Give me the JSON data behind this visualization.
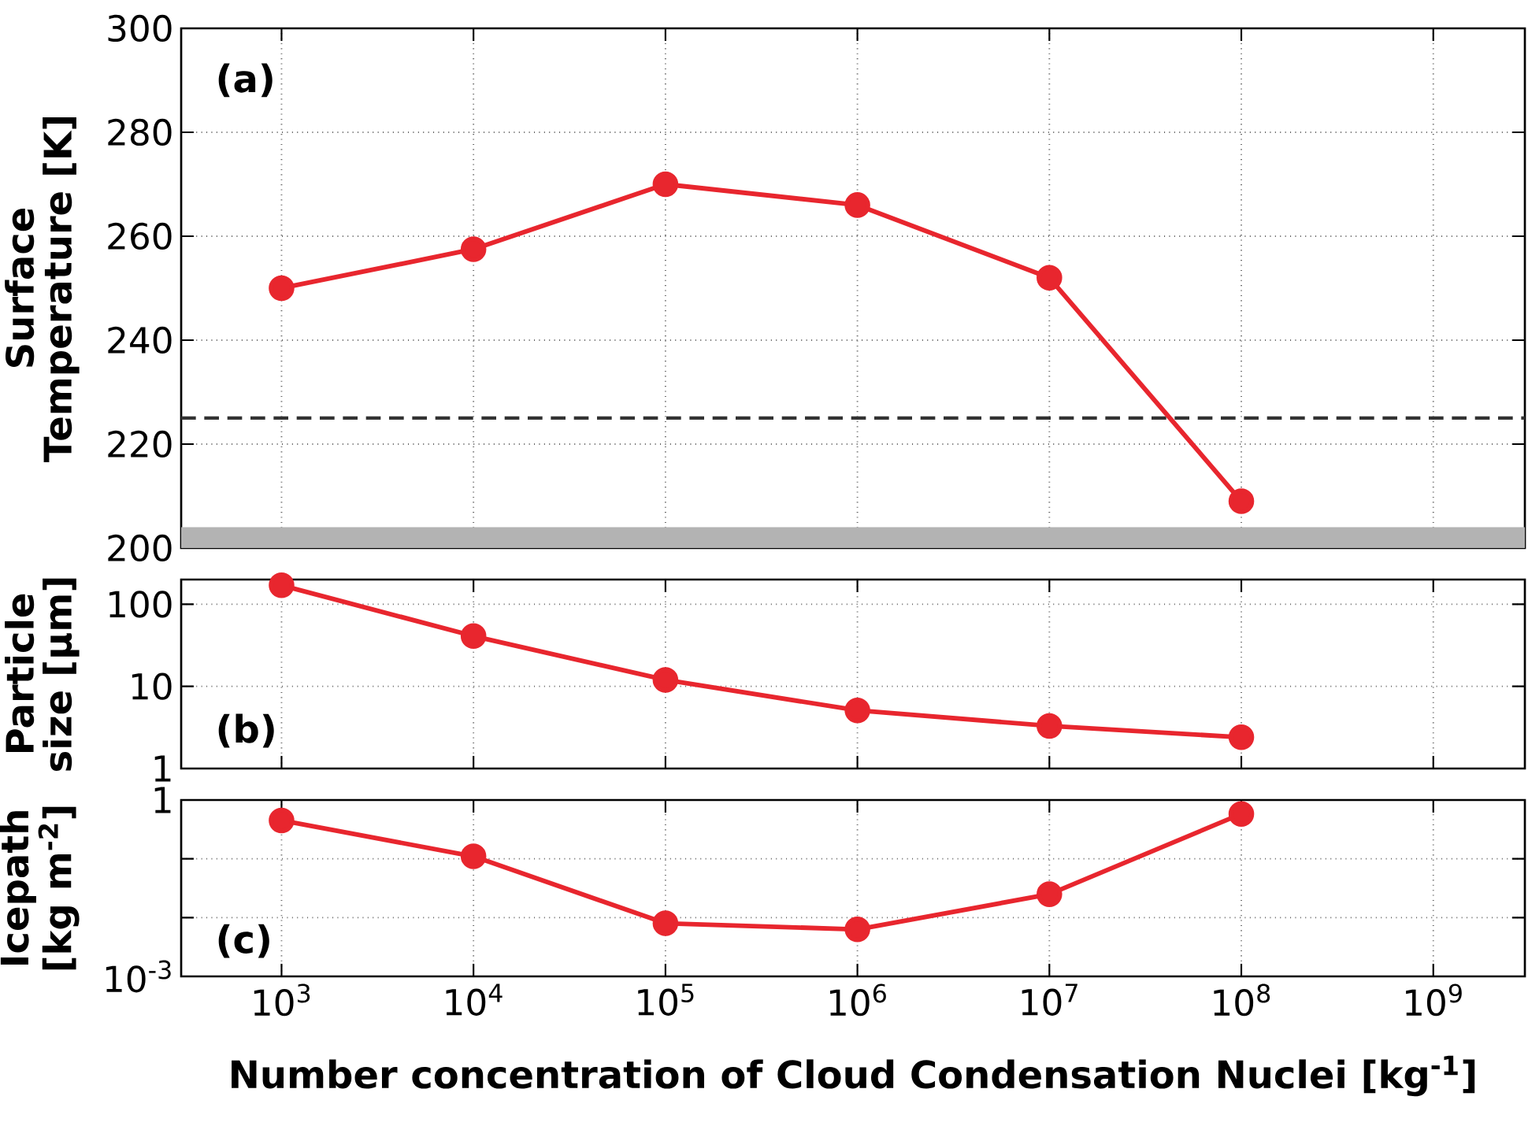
{
  "chart_data": [
    {
      "type": "line",
      "ylabel": "Surface Temperature [K]",
      "annotations": [
        "(a)"
      ],
      "x": [
        1000,
        10000,
        100000,
        1000000,
        10000000,
        100000000
      ],
      "series": [
        {
          "color": "#e8262e",
          "values": [
            250,
            257.5,
            270,
            266,
            252,
            209
          ]
        }
      ],
      "xlim": [
        300,
        3000000000
      ],
      "ylim": [
        200,
        300
      ],
      "xticks": [
        {
          "value": 1000,
          "label": null
        },
        {
          "value": 10000,
          "label": null
        },
        {
          "value": 100000,
          "label": null
        },
        {
          "value": 1000000,
          "label": null
        },
        {
          "value": 10000000,
          "label": null
        },
        {
          "value": 100000000,
          "label": null
        },
        {
          "value": 1000000000,
          "label": null
        }
      ],
      "yticks": [
        200,
        220,
        240,
        260,
        280,
        300
      ],
      "log": "x",
      "grid": true,
      "marker": "circle",
      "line_style": "solid",
      "tick_labels": "y",
      "ref_lines": [
        {
          "axis": "y",
          "value": 225,
          "color": "#333333",
          "line_style": "dashed"
        }
      ],
      "bands": [
        {
          "axis": "y",
          "from": 200,
          "to": 204,
          "color": "#b3b3b3"
        }
      ]
    },
    {
      "type": "line",
      "ylabel": "Particle size [μm]",
      "annotations": [
        "(b)"
      ],
      "x": [
        1000,
        10000,
        100000,
        1000000,
        10000000,
        100000000
      ],
      "series": [
        {
          "color": "#e8262e",
          "values": [
            170,
            41,
            12,
            5.1,
            3.3,
            2.4
          ]
        }
      ],
      "xlim": [
        300,
        3000000000
      ],
      "ylim": [
        1,
        200
      ],
      "xticks": [
        {
          "value": 1000,
          "label": null
        },
        {
          "value": 10000,
          "label": null
        },
        {
          "value": 100000,
          "label": null
        },
        {
          "value": 1000000,
          "label": null
        },
        {
          "value": 10000000,
          "label": null
        },
        {
          "value": 100000000,
          "label": null
        },
        {
          "value": 1000000000,
          "label": null
        }
      ],
      "yticks": [
        1,
        10,
        100
      ],
      "log": "xy",
      "grid": true,
      "marker": "circle",
      "line_style": "solid",
      "tick_labels": "y"
    },
    {
      "type": "line",
      "ylabel": "Icepath [kg m$^{-2}$]",
      "xlabel": "Number concentration of Cloud Condensation Nuclei [kg$^{-1}$]",
      "annotations": [
        "(c)"
      ],
      "x": [
        1000,
        10000,
        100000,
        1000000,
        10000000,
        100000000
      ],
      "series": [
        {
          "color": "#e8262e",
          "values": [
            0.45,
            0.11,
            0.008,
            0.0063,
            0.025,
            0.58
          ]
        }
      ],
      "xlim": [
        300,
        3000000000
      ],
      "ylim": [
        0.001,
        1
      ],
      "xticks": [
        {
          "value": 1000,
          "label": "10$^{3}$"
        },
        {
          "value": 10000,
          "label": "10$^{4}$"
        },
        {
          "value": 100000,
          "label": "10$^{5}$"
        },
        {
          "value": 1000000,
          "label": "10$^{6}$"
        },
        {
          "value": 10000000,
          "label": "10$^{7}$"
        },
        {
          "value": 100000000,
          "label": "10$^{8}$"
        },
        {
          "value": 1000000000,
          "label": "10$^{9}$"
        }
      ],
      "yticks": [
        {
          "value": 0.001,
          "label": "10$^{-3}$"
        },
        {
          "value": 0.01,
          "label": null
        },
        {
          "value": 0.1,
          "label": null
        },
        1
      ],
      "log": "xy",
      "grid": true,
      "marker": "circle",
      "line_style": "solid"
    }
  ]
}
